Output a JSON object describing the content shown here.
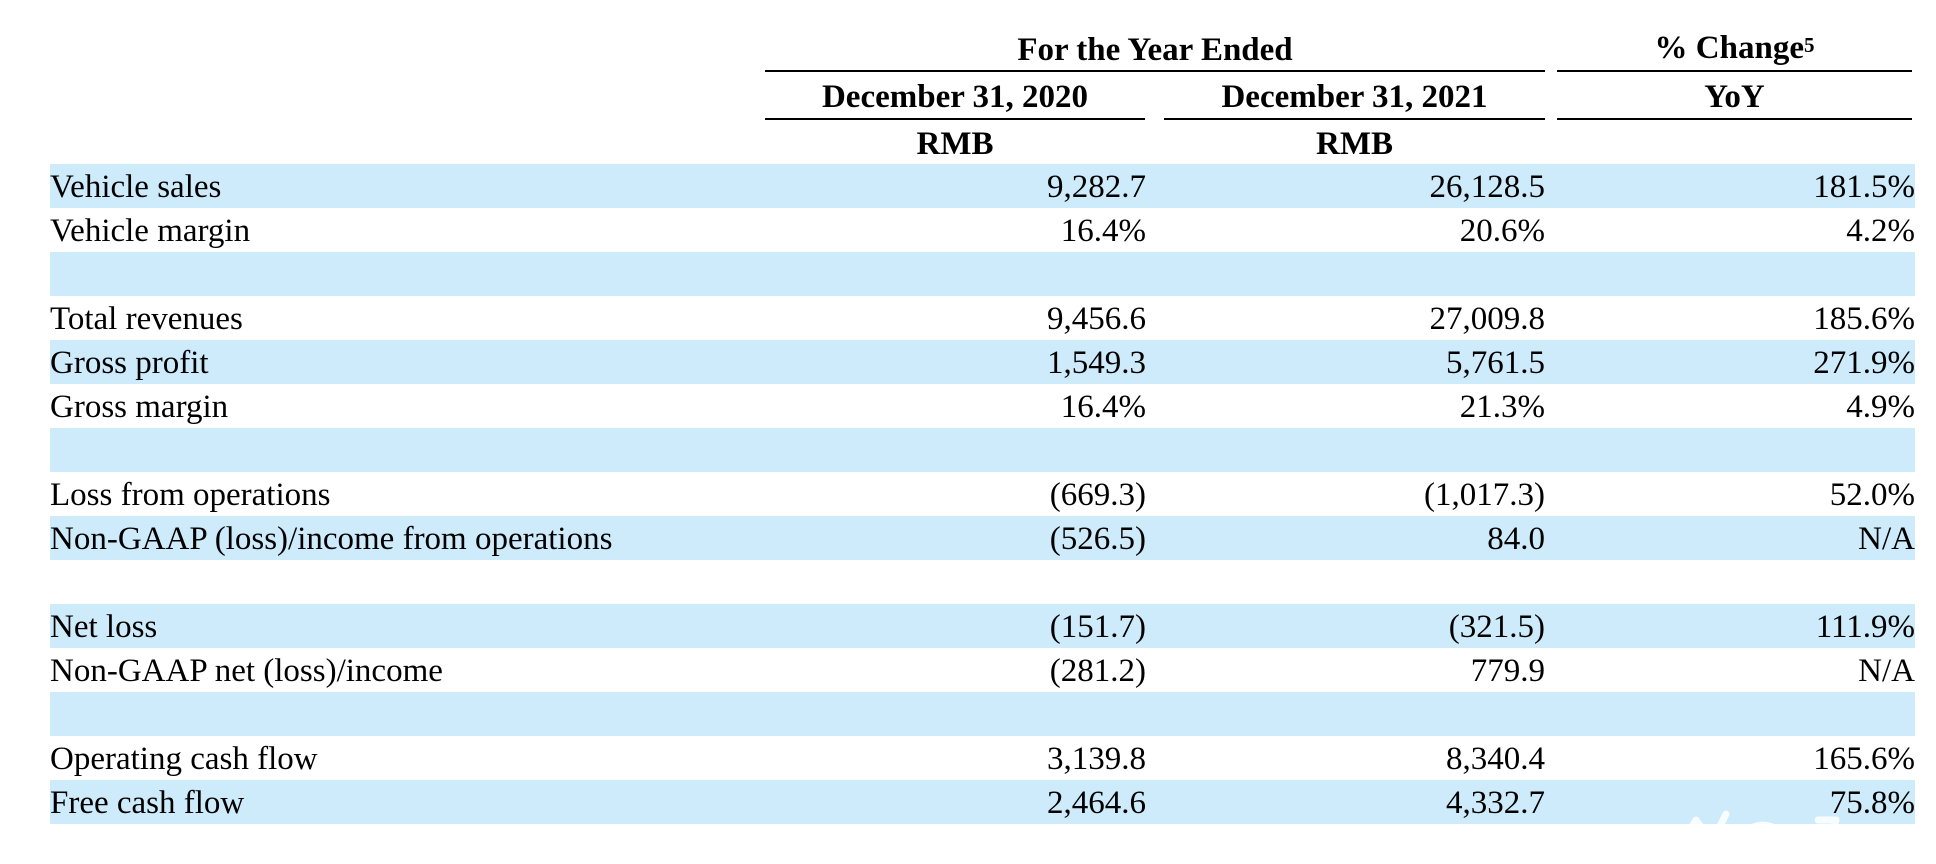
{
  "header": {
    "period_group": "For the Year Ended",
    "col_2020": "December 31, 2020",
    "col_2021": "December 31, 2021",
    "change_group": "% Change",
    "change_footnote": "5",
    "change_sub": "YoY",
    "currency_2020": "RMB",
    "currency_2021": "RMB"
  },
  "rows": [
    {
      "label": "Vehicle sales",
      "v2020": "9,282.7",
      "v2021": "26,128.5",
      "yoy": "181.5%"
    },
    {
      "label": "Vehicle margin",
      "v2020": "16.4%",
      "v2021": "20.6%",
      "yoy": "4.2%"
    },
    {
      "label": "",
      "v2020": "",
      "v2021": "",
      "yoy": ""
    },
    {
      "label": "Total revenues",
      "v2020": "9,456.6",
      "v2021": "27,009.8",
      "yoy": "185.6%"
    },
    {
      "label": "Gross profit",
      "v2020": "1,549.3",
      "v2021": "5,761.5",
      "yoy": "271.9%"
    },
    {
      "label": "Gross margin",
      "v2020": "16.4%",
      "v2021": "21.3%",
      "yoy": "4.9%"
    },
    {
      "label": "",
      "v2020": "",
      "v2021": "",
      "yoy": ""
    },
    {
      "label": "Loss from operations",
      "v2020": "(669.3)",
      "v2021": "(1,017.3)",
      "yoy": "52.0%"
    },
    {
      "label": "Non-GAAP (loss)/income from operations",
      "v2020": "(526.5)",
      "v2021": "84.0",
      "yoy": "N/A"
    },
    {
      "label": "",
      "v2020": "",
      "v2021": "",
      "yoy": ""
    },
    {
      "label": "Net loss",
      "v2020": "(151.7)",
      "v2021": "(321.5)",
      "yoy": "111.9%"
    },
    {
      "label": "Non-GAAP net (loss)/income",
      "v2020": "(281.2)",
      "v2021": "779.9",
      "yoy": "N/A"
    },
    {
      "label": "",
      "v2020": "",
      "v2021": "",
      "yoy": ""
    },
    {
      "label": "Operating cash flow",
      "v2020": "3,139.8",
      "v2021": "8,340.4",
      "yoy": "165.6%"
    },
    {
      "label": "Free cash flow",
      "v2020": "2,464.6",
      "v2021": "4,332.7",
      "yoy": "75.8%"
    }
  ],
  "colors": {
    "row_shade": "#cdebfa",
    "text": "#000000",
    "rule": "#000000"
  },
  "watermark": {
    "icon": "logo-watermark-icon"
  }
}
